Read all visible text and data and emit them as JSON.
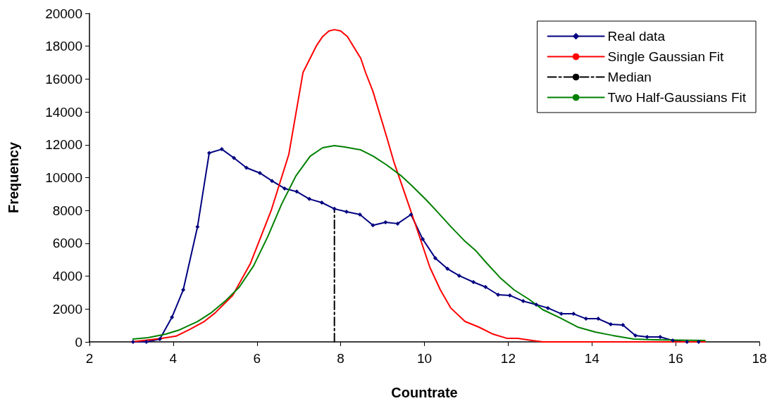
{
  "chart_data": {
    "type": "line",
    "xlabel": "Countrate",
    "ylabel": "Frequency",
    "xlim": [
      2,
      18
    ],
    "xticks": [
      2,
      4,
      6,
      8,
      10,
      12,
      14,
      16,
      18
    ],
    "ylim": [
      0,
      20000
    ],
    "yticks": [
      0,
      2000,
      4000,
      6000,
      8000,
      10000,
      12000,
      14000,
      16000,
      18000,
      20000
    ],
    "grid": false,
    "legend": "top right",
    "series": [
      {
        "name": "Real data",
        "color": "#000080",
        "marker": "diamond",
        "x": [
          3.04,
          3.36,
          3.68,
          3.97,
          4.24,
          4.58,
          4.86,
          5.16,
          5.45,
          5.75,
          6.07,
          6.36,
          6.66,
          6.95,
          7.25,
          7.55,
          7.85,
          8.14,
          8.46,
          8.77,
          9.07,
          9.36,
          9.68,
          9.96,
          10.26,
          10.55,
          10.83,
          11.17,
          11.46,
          11.76,
          12.04,
          12.36,
          12.67,
          12.95,
          13.27,
          13.56,
          13.86,
          14.15,
          14.45,
          14.74,
          15.04,
          15.32,
          15.63,
          15.93,
          16.27,
          16.55
        ],
        "values": [
          0,
          0,
          170,
          1500,
          3170,
          7000,
          11500,
          11730,
          11200,
          10600,
          10280,
          9800,
          9340,
          9150,
          8700,
          8480,
          8100,
          7920,
          7750,
          7100,
          7280,
          7200,
          7750,
          6250,
          5100,
          4450,
          4030,
          3640,
          3340,
          2870,
          2830,
          2480,
          2270,
          2060,
          1710,
          1710,
          1410,
          1410,
          1070,
          1030,
          390,
          300,
          300,
          90,
          0,
          0
        ]
      },
      {
        "name": "Single Gaussian Fit",
        "color": "#ff0000",
        "marker": "none",
        "x": [
          3.0,
          3.7,
          4.07,
          4.4,
          4.74,
          5.0,
          5.42,
          5.84,
          6.34,
          6.76,
          7.1,
          7.43,
          7.57,
          7.72,
          7.85,
          8.0,
          8.16,
          8.48,
          8.6,
          8.77,
          9.1,
          9.27,
          9.53,
          9.79,
          10.13,
          10.38,
          10.63,
          10.97,
          11.3,
          11.64,
          11.98,
          12.23,
          12.57,
          12.82,
          16.7
        ],
        "values": [
          0,
          200,
          350,
          770,
          1240,
          1760,
          2830,
          4750,
          8000,
          11400,
          16400,
          18070,
          18590,
          18930,
          19010,
          18930,
          18590,
          17260,
          16360,
          15250,
          12460,
          10960,
          9040,
          7110,
          4540,
          3170,
          2060,
          1240,
          900,
          470,
          210,
          210,
          90,
          0,
          0
        ]
      },
      {
        "name": "Median",
        "color": "#000000",
        "marker": "none",
        "line_style": "dashed",
        "x": [
          7.85,
          7.85
        ],
        "values": [
          0,
          8100
        ]
      },
      {
        "name": "Two Half-Gaussians Fit",
        "color": "#008000",
        "marker": "none",
        "x": [
          3.04,
          3.4,
          3.82,
          4.15,
          4.58,
          4.9,
          5.24,
          5.58,
          5.92,
          6.26,
          6.59,
          6.93,
          7.27,
          7.57,
          7.85,
          8.1,
          8.48,
          8.78,
          9.11,
          9.45,
          9.7,
          10.04,
          10.29,
          10.63,
          10.97,
          11.22,
          11.47,
          11.81,
          12.14,
          12.51,
          12.82,
          13.24,
          13.66,
          14.08,
          14.5,
          15.0,
          15.51,
          16.7
        ],
        "values": [
          170,
          260,
          470,
          730,
          1240,
          1760,
          2480,
          3340,
          4630,
          6420,
          8390,
          10100,
          11300,
          11820,
          11950,
          11860,
          11690,
          11300,
          10750,
          10100,
          9510,
          8650,
          7970,
          7020,
          6120,
          5570,
          4840,
          3900,
          3170,
          2570,
          1970,
          1460,
          900,
          600,
          390,
          170,
          130,
          90
        ]
      }
    ]
  }
}
